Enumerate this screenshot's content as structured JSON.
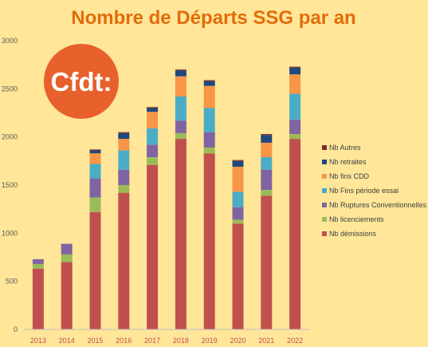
{
  "chart_data": {
    "type": "bar",
    "stacked": true,
    "title": "Nombre de Départs SSG par an",
    "categories": [
      "2013",
      "2014",
      "2015",
      "2016",
      "2017",
      "2018",
      "2019",
      "2020",
      "2021",
      "2022"
    ],
    "ylim": [
      0,
      3000
    ],
    "yticks": [
      0,
      500,
      1000,
      1500,
      2000,
      2500,
      3000
    ],
    "grid": false,
    "legend_position": "right",
    "series": [
      {
        "name": "Nb démissions",
        "color": "#c0504d",
        "values": [
          630,
          700,
          1220,
          1420,
          1710,
          1980,
          1830,
          1100,
          1390,
          1980
        ]
      },
      {
        "name": "Nb licenciements",
        "color": "#9bbb59",
        "values": [
          50,
          80,
          150,
          80,
          80,
          60,
          60,
          40,
          60,
          50
        ]
      },
      {
        "name": "Nb Ruptures Conventionnelles",
        "color": "#8064a2",
        "values": [
          50,
          110,
          200,
          160,
          130,
          130,
          160,
          130,
          210,
          150
        ]
      },
      {
        "name": "Nb Fins période essai",
        "color": "#4bacc6",
        "values": [
          0,
          0,
          150,
          200,
          170,
          250,
          250,
          160,
          130,
          270
        ]
      },
      {
        "name": "Nb fins CDD",
        "color": "#f79646",
        "values": [
          0,
          0,
          110,
          120,
          170,
          210,
          230,
          260,
          150,
          200
        ]
      },
      {
        "name": "Nb retraites",
        "color": "#1f497d",
        "values": [
          0,
          0,
          30,
          60,
          40,
          60,
          50,
          60,
          80,
          70
        ]
      },
      {
        "name": "Nb Autres",
        "color": "#7b2c2c",
        "values": [
          0,
          0,
          10,
          10,
          10,
          10,
          10,
          10,
          10,
          10
        ]
      }
    ]
  },
  "logo": {
    "text": "Cfdt:",
    "color": "#e8602c"
  },
  "colors": {
    "title": "#e36c09",
    "tick": "#595959",
    "xtick": "#c0504d"
  }
}
